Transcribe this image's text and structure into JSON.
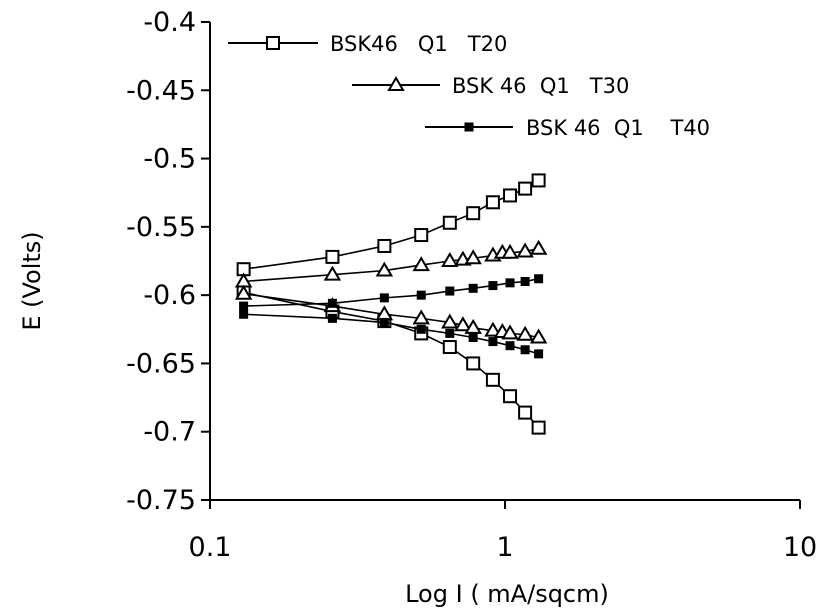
{
  "chart_data": {
    "type": "line",
    "xscale": "log",
    "xlabel": "Log I ( mA/sqcm)",
    "ylabel": "E (Volts)",
    "xlim": [
      0.1,
      10
    ],
    "ylim": [
      -0.75,
      -0.4
    ],
    "xticks": [
      0.1,
      1,
      10
    ],
    "xtick_labels": [
      "0.1",
      "1",
      "10"
    ],
    "yticks": [
      -0.4,
      -0.45,
      -0.5,
      -0.55,
      -0.6,
      -0.65,
      -0.7,
      -0.75
    ],
    "ytick_labels": [
      "-0.4",
      "-0.45",
      "-0.5",
      "-0.55",
      "-0.6",
      "-0.65",
      "-0.7",
      "-0.75"
    ],
    "grid": false,
    "legend_position": "top-right, stepped",
    "series": [
      {
        "name": "BSK46   Q1   T20",
        "marker": "square",
        "branches": [
          {
            "x": [
              0.13,
              0.26,
              0.39,
              0.52,
              0.65,
              0.78,
              0.91,
              1.04,
              1.17,
              1.3
            ],
            "y": [
              -0.581,
              -0.572,
              -0.564,
              -0.556,
              -0.547,
              -0.54,
              -0.532,
              -0.527,
              -0.522,
              -0.516
            ]
          },
          {
            "x": [
              0.13,
              0.26,
              0.39,
              0.52,
              0.65,
              0.78,
              0.91,
              1.04,
              1.17,
              1.3
            ],
            "y": [
              -0.598,
              -0.612,
              -0.619,
              -0.628,
              -0.638,
              -0.65,
              -0.662,
              -0.674,
              -0.686,
              -0.697
            ]
          }
        ]
      },
      {
        "name": "BSK 46  Q1   T30",
        "marker": "triangle",
        "branches": [
          {
            "x": [
              0.13,
              0.26,
              0.39,
              0.52,
              0.65,
              0.72,
              0.78,
              0.91,
              0.98,
              1.04,
              1.17,
              1.3
            ],
            "y": [
              -0.59,
              -0.585,
              -0.582,
              -0.578,
              -0.575,
              -0.574,
              -0.573,
              -0.571,
              -0.569,
              -0.569,
              -0.568,
              -0.566
            ]
          },
          {
            "x": [
              0.13,
              0.26,
              0.39,
              0.52,
              0.65,
              0.72,
              0.78,
              0.91,
              0.98,
              1.04,
              1.17,
              1.3
            ],
            "y": [
              -0.599,
              -0.608,
              -0.614,
              -0.617,
              -0.62,
              -0.622,
              -0.624,
              -0.626,
              -0.627,
              -0.628,
              -0.629,
              -0.631
            ]
          }
        ]
      },
      {
        "name": "BSK 46  Q1    T40",
        "marker": "filled-square",
        "branches": [
          {
            "x": [
              0.13,
              0.26,
              0.39,
              0.52,
              0.65,
              0.78,
              0.91,
              1.04,
              1.17,
              1.3
            ],
            "y": [
              -0.608,
              -0.606,
              -0.602,
              -0.6,
              -0.597,
              -0.595,
              -0.593,
              -0.591,
              -0.59,
              -0.588
            ]
          },
          {
            "x": [
              0.13,
              0.26,
              0.39,
              0.52,
              0.65,
              0.78,
              0.91,
              1.04,
              1.17,
              1.3
            ],
            "y": [
              -0.614,
              -0.617,
              -0.62,
              -0.625,
              -0.628,
              -0.631,
              -0.634,
              -0.637,
              -0.64,
              -0.643
            ]
          }
        ]
      }
    ]
  }
}
